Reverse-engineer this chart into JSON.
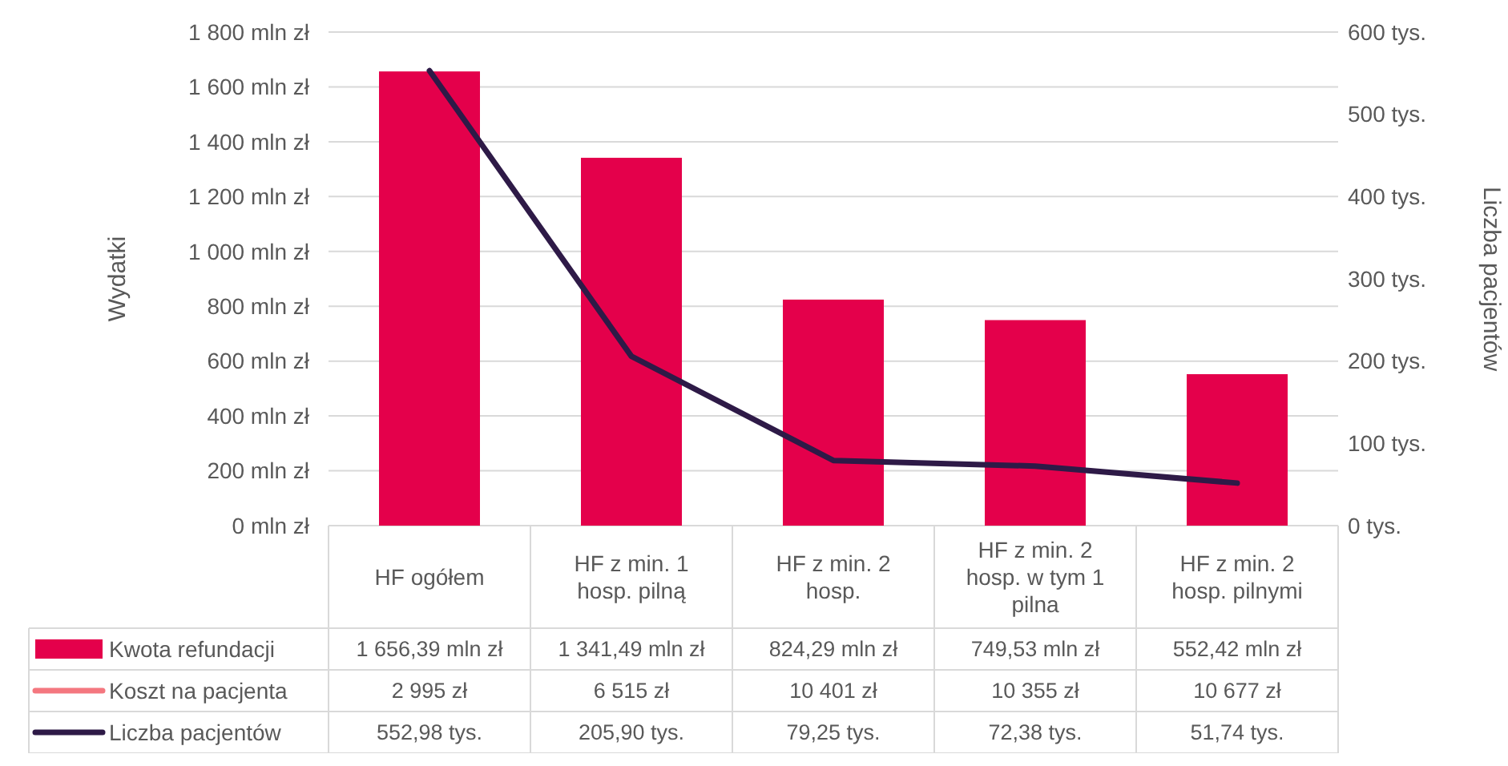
{
  "chart_data": {
    "type": "bar",
    "ylabel": "Wydatki",
    "y2label": "Liczba pacjentów",
    "categories": [
      "HF ogółem",
      "HF z min. 1 hosp. pilną",
      "HF z min. 2 hosp.",
      "HF z min. 2 hosp. w tym 1 pilna",
      "HF z min. 2 hosp. pilnymi"
    ],
    "series": [
      {
        "name": "Kwota refundacji",
        "color": "#e4004b",
        "values": [
          1656.39,
          1341.49,
          824.29,
          749.53,
          552.42
        ],
        "value_labels": [
          "1 656,39 mln zł",
          "1 341,49 mln zł",
          "824,29 mln zł",
          "749,53 mln zł",
          "552,42 mln zł"
        ]
      },
      {
        "name": "Koszt na pacjenta",
        "type": "line",
        "color": "#f4777f",
        "values": [
          null,
          null,
          null,
          null,
          null
        ],
        "value_labels": [
          "2 995 zł",
          "6 515 zł",
          "10 401 zł",
          "10 355 zł",
          "10 677 zł"
        ]
      },
      {
        "name": "Liczba pacjentów",
        "type": "line",
        "axis": "y2",
        "color": "#2e1a47",
        "values": [
          552.98,
          205.9,
          79.25,
          72.38,
          51.74
        ],
        "value_labels": [
          "552,98 tys.",
          "205,90 tys.",
          "79,25 tys.",
          "72,38 tys.",
          "51,74 tys."
        ]
      }
    ],
    "ylim": [
      0,
      1800
    ],
    "yticks": [
      {
        "value": 0,
        "label": "0 mln zł"
      },
      {
        "value": 200,
        "label": "200 mln zł"
      },
      {
        "value": 400,
        "label": "400 mln zł"
      },
      {
        "value": 600,
        "label": "600 mln zł"
      },
      {
        "value": 800,
        "label": "800 mln zł"
      },
      {
        "value": 1000,
        "label": "1 000 mln zł"
      },
      {
        "value": 1200,
        "label": "1 200 mln zł"
      },
      {
        "value": 1400,
        "label": "1 400 mln zł"
      },
      {
        "value": 1600,
        "label": "1 600 mln zł"
      },
      {
        "value": 1800,
        "label": "1 800 mln zł"
      }
    ],
    "y2lim": [
      0,
      600
    ],
    "y2ticks": [
      {
        "value": 0,
        "label": "0 tys."
      },
      {
        "value": 100,
        "label": "100 tys."
      },
      {
        "value": 200,
        "label": "200 tys."
      },
      {
        "value": 300,
        "label": "300 tys."
      },
      {
        "value": 400,
        "label": "400 tys."
      },
      {
        "value": 500,
        "label": "500 tys."
      },
      {
        "value": 600,
        "label": "600 tys."
      }
    ],
    "grid": "y",
    "legend": "bottom left",
    "line_style": "solid",
    "marker": "none"
  }
}
